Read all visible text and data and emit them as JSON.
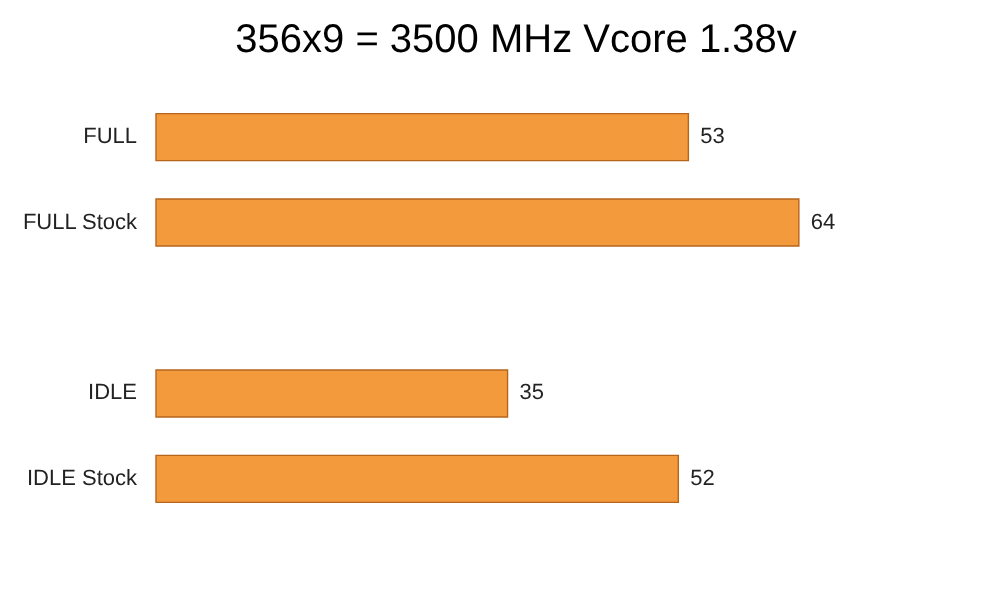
{
  "chart_data": {
    "type": "bar",
    "orientation": "horizontal",
    "title": "356x9 = 3500 MHz Vcore 1.38v",
    "categories": [
      "FULL",
      "FULL Stock",
      null,
      "IDLE",
      "IDLE Stock"
    ],
    "values": [
      53,
      64,
      null,
      35,
      52
    ],
    "color": "#f29a3c",
    "data_labels": true,
    "grid": false
  }
}
